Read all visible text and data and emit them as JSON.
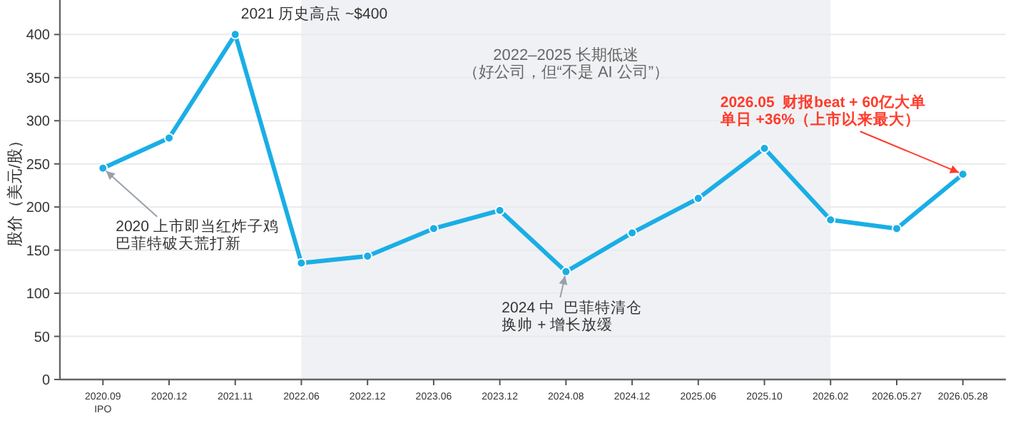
{
  "chart_data": {
    "type": "line",
    "ylabel": "股价（美元/股）",
    "categories": [
      "2020.09\nIPO",
      "2020.12",
      "2021.11",
      "2022.06",
      "2022.12",
      "2023.06",
      "2023.12",
      "2024.08",
      "2024.12",
      "2025.06",
      "2025.10",
      "2026.02",
      "2026.05.27",
      "2026.05.28"
    ],
    "series": [
      {
        "color": "#1aaee6",
        "values": [
          245,
          280,
          400,
          135,
          143,
          175,
          196,
          125,
          170,
          210,
          268,
          185,
          175,
          238
        ]
      }
    ],
    "ylim": [
      0,
      440
    ],
    "yticks": [
      0,
      50,
      100,
      150,
      200,
      250,
      300,
      350,
      400
    ],
    "grid": "y",
    "marker": "circle",
    "line_style": "solid",
    "bands": [
      {
        "axis": "x",
        "from": "2022.06",
        "to": "2026.02",
        "label": "2022–2025  长期低迷",
        "color": "#f0f1f4"
      }
    ],
    "annotations": [
      {
        "text": "2021 历史高点 ~$400",
        "x": "2021.11",
        "y": 400
      },
      {
        "text": "2020 上市即当红炸子鸡巴菲特破天荒打新",
        "x": "2020.09\nIPO",
        "y": 245
      },
      {
        "text": "2024 中  巴菲特清仓换帅 + 增长放缓",
        "x": "2024.08",
        "y": 125
      },
      {
        "text": "2026.05  财报beat + 60亿大单单日 +36%（上市以来最大）",
        "x": "2026.05.28",
        "y": 238
      },
      "（好公司，但“不是 AI 公司”）"
    ]
  }
}
